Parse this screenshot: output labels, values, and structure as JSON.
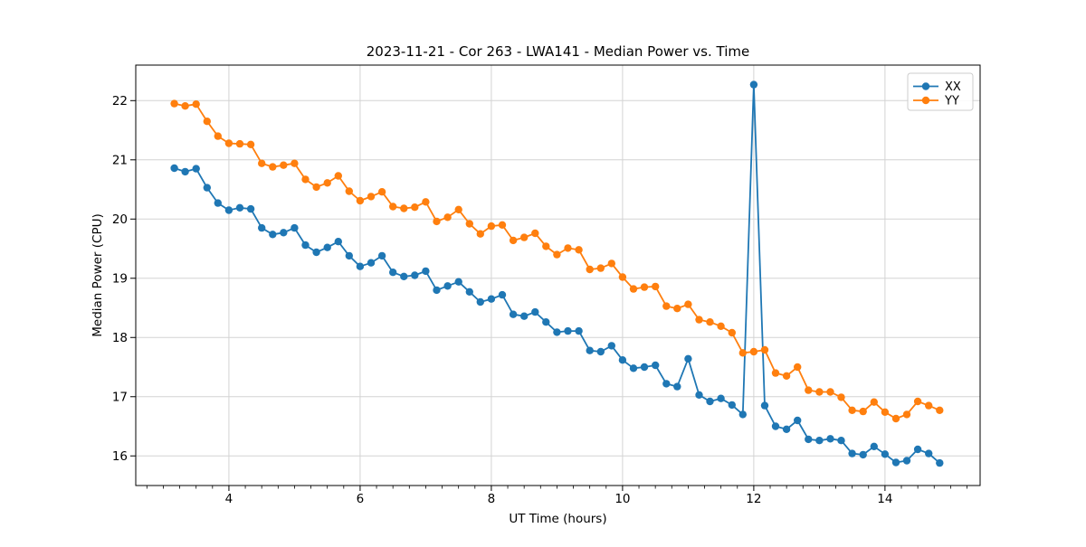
{
  "chart_data": {
    "type": "line",
    "title": "2023-11-21 - Cor 263 - LWA141 - Median Power vs. Time",
    "xlabel": "UT Time (hours)",
    "ylabel": "Median Power (CPU)",
    "xlim": [
      2.58,
      15.45
    ],
    "ylim": [
      15.5,
      22.6
    ],
    "x_major_ticks": [
      4,
      6,
      8,
      10,
      12,
      14
    ],
    "x_minor_step": 0.25,
    "y_major_ticks": [
      16,
      17,
      18,
      19,
      20,
      21,
      22
    ],
    "grid": true,
    "grid_color": "#d3d3d3",
    "spine_color": "#000000",
    "legend_position": "upper right",
    "marker": "circle",
    "x": [
      3.167,
      3.333,
      3.5,
      3.667,
      3.833,
      4,
      4.167,
      4.333,
      4.5,
      4.667,
      4.833,
      5,
      5.167,
      5.333,
      5.5,
      5.667,
      5.833,
      6,
      6.167,
      6.333,
      6.5,
      6.667,
      6.833,
      7,
      7.167,
      7.333,
      7.5,
      7.667,
      7.833,
      8,
      8.167,
      8.333,
      8.5,
      8.667,
      8.833,
      9,
      9.167,
      9.333,
      9.5,
      9.667,
      9.833,
      10,
      10.167,
      10.333,
      10.5,
      10.667,
      10.833,
      11,
      11.167,
      11.333,
      11.5,
      11.667,
      11.833,
      12,
      12.167,
      12.333,
      12.5,
      12.667,
      12.833,
      13,
      13.167,
      13.333,
      13.5,
      13.667,
      13.833,
      14,
      14.167,
      14.333,
      14.5,
      14.667,
      14.833
    ],
    "series": [
      {
        "name": "XX",
        "color": "#1f77b4",
        "values": [
          20.86,
          20.8,
          20.85,
          20.53,
          20.27,
          20.15,
          20.19,
          20.17,
          19.85,
          19.74,
          19.77,
          19.85,
          19.56,
          19.44,
          19.52,
          19.62,
          19.38,
          19.2,
          19.26,
          19.38,
          19.1,
          19.03,
          19.05,
          19.12,
          18.8,
          18.87,
          18.94,
          18.77,
          18.6,
          18.65,
          18.72,
          18.39,
          18.36,
          18.43,
          18.26,
          18.09,
          18.11,
          18.11,
          17.78,
          17.76,
          17.86,
          17.62,
          17.48,
          17.5,
          17.53,
          17.22,
          17.17,
          17.64,
          17.03,
          16.92,
          16.97,
          16.86,
          16.7,
          22.27,
          16.85,
          16.5,
          16.45,
          16.6,
          16.28,
          16.26,
          16.29,
          16.26,
          16.04,
          16.02,
          16.16,
          16.03,
          15.89,
          15.92,
          16.11,
          16.04,
          15.88
        ]
      },
      {
        "name": "YY",
        "color": "#ff7f0e",
        "values": [
          21.95,
          21.91,
          21.94,
          21.65,
          21.4,
          21.28,
          21.27,
          21.26,
          20.94,
          20.88,
          20.91,
          20.94,
          20.67,
          20.54,
          20.61,
          20.73,
          20.47,
          20.31,
          20.38,
          20.46,
          20.21,
          20.18,
          20.2,
          20.29,
          19.96,
          20.03,
          20.16,
          19.92,
          19.75,
          19.88,
          19.9,
          19.64,
          19.69,
          19.76,
          19.54,
          19.4,
          19.51,
          19.48,
          19.15,
          19.17,
          19.25,
          19.02,
          18.82,
          18.85,
          18.86,
          18.53,
          18.49,
          18.56,
          18.3,
          18.26,
          18.19,
          18.08,
          17.74,
          17.76,
          17.79,
          17.4,
          17.35,
          17.5,
          17.11,
          17.08,
          17.08,
          16.99,
          16.77,
          16.75,
          16.91,
          16.74,
          16.63,
          16.7,
          16.92,
          16.85,
          16.77
        ]
      }
    ]
  }
}
